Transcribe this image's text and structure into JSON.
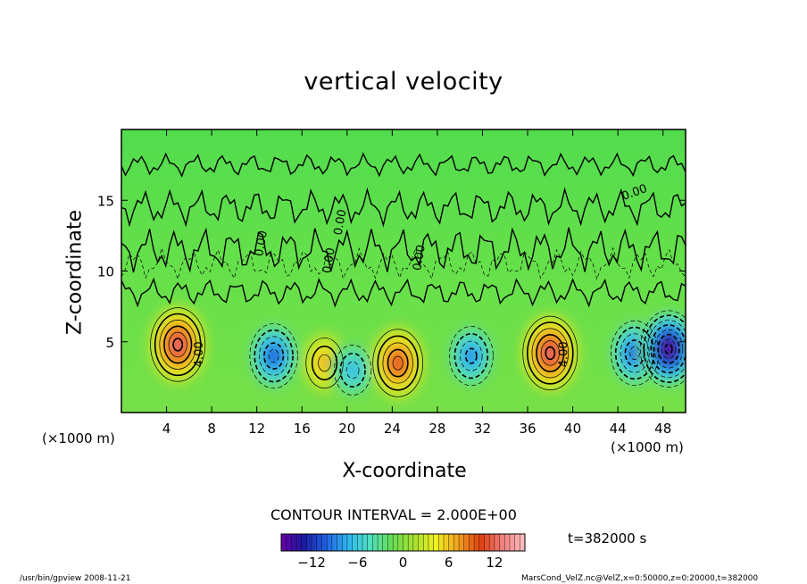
{
  "chart_data": {
    "type": "heatmap",
    "title": "vertical velocity",
    "xlabel": "X-coordinate",
    "ylabel": "Z-coordinate",
    "x_unit_left": "(×1000 m)",
    "x_unit_right": "(×1000 m)",
    "xlim": [
      0,
      50
    ],
    "ylim": [
      0,
      20
    ],
    "x_ticks": [
      4,
      8,
      12,
      16,
      20,
      24,
      28,
      32,
      36,
      40,
      44,
      48
    ],
    "y_ticks": [
      5,
      10,
      15
    ],
    "contour_labels": [
      "4.00",
      "4.00",
      "0.00",
      "0.00",
      "0.00",
      "0.00",
      "0.00"
    ],
    "contour_interval_text": "CONTOUR INTERVAL = 2.000E+00",
    "colorbar": {
      "min": -16,
      "max": 16,
      "ticks": [
        -12,
        -6,
        0,
        6,
        12
      ],
      "colors": [
        "#6a00a8",
        "#1a1aa0",
        "#1f5fe0",
        "#2fb4f0",
        "#4fe0c0",
        "#66dd55",
        "#a8e030",
        "#f0f020",
        "#f0a020",
        "#e04010",
        "#f08080",
        "#ffc0c0"
      ]
    },
    "features": [
      {
        "x": 5,
        "z": 4.8,
        "w": 12
      },
      {
        "x": 13.5,
        "z": 4.0,
        "w": -9
      },
      {
        "x": 18,
        "z": 3.5,
        "w": 6
      },
      {
        "x": 20.5,
        "z": 3.0,
        "w": -6
      },
      {
        "x": 24.5,
        "z": 3.5,
        "w": 10
      },
      {
        "x": 31,
        "z": 4.0,
        "w": -8
      },
      {
        "x": 38,
        "z": 4.2,
        "w": 12
      },
      {
        "x": 45.5,
        "z": 4.2,
        "w": -9
      },
      {
        "x": 48.5,
        "z": 4.5,
        "w": -15
      }
    ]
  },
  "time_label": "t=382000  s",
  "footer": {
    "left": "/usr/bin/gpview   2008-11-21",
    "right": "MarsCond_VelZ.nc@VelZ,x=0:50000,z=0:20000,t=382000"
  }
}
